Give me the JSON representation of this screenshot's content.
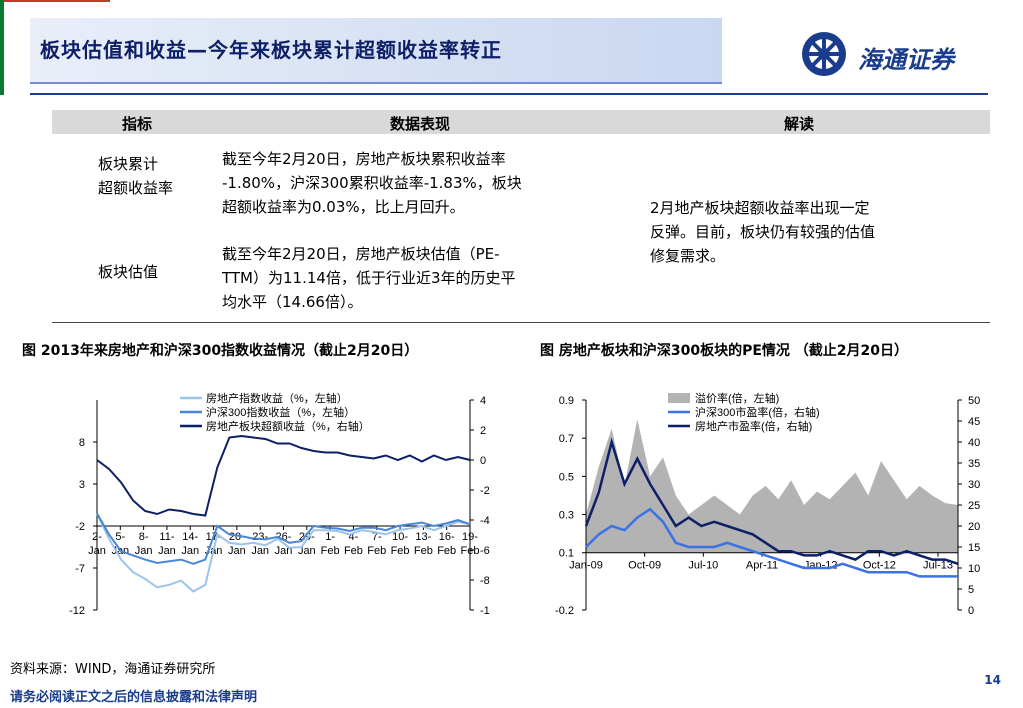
{
  "header": {
    "title": "板块估值和收益—今年来板块累计超额收益率转正",
    "logo_text": "海通证券"
  },
  "table": {
    "headers": [
      "指标",
      "数据表现",
      "解读"
    ],
    "rows": [
      {
        "indicator": "板块累计超额收益率",
        "indicator_lines": [
          "板块累计",
          "超额收益率"
        ],
        "data_lines": [
          "截至今年2月20日，房地产板块累积收益率",
          "-1.80%，沪深300累积收益率-1.83%，板块",
          "超额收益率为0.03%，比上月回升。"
        ]
      },
      {
        "indicator": "板块估值",
        "data_lines": [
          "截至今年2月20日，房地产板块估值（PE-",
          "TTM）为11.14倍，低于行业近3年的历史平",
          "均水平（14.66倍）。"
        ]
      }
    ],
    "interpretation_lines": [
      "2月地产板块超额收益率出现一定",
      "反弹。目前，板块仍有较强的估值",
      "修复需求。"
    ]
  },
  "captions": {
    "left": "图 2013年来房地产和沪深300指数收益情况（截止2月20日）",
    "right": "图 房地产板块和沪深300板块的PE情况 （截止2月20日）"
  },
  "chart_data": [
    {
      "type": "line",
      "x_tick_labels_top": [
        "2-",
        "5-",
        "8-",
        "11-",
        "14-",
        "17-",
        "20-",
        "23-",
        "26-",
        "29-",
        "1-",
        "4-",
        "7-",
        "10-",
        "13-",
        "16-",
        "19-"
      ],
      "x_tick_labels_bottom": [
        "Jan",
        "Jan",
        "Jan",
        "Jan",
        "Jan",
        "Jan",
        "Jan",
        "Jan",
        "Jan",
        "Jan",
        "Feb",
        "Feb",
        "Feb",
        "Feb",
        "Feb",
        "Feb",
        "Feb"
      ],
      "ylim_left": [
        -12,
        13
      ],
      "y_ticks_left": [
        "8",
        "3",
        "-2",
        "-7",
        "-12"
      ],
      "ylim_right": [
        -10,
        4
      ],
      "y_ticks_right": [
        "4",
        "2",
        "0",
        "-2",
        "-4",
        "-6",
        "-8",
        "-10"
      ],
      "series": [
        {
          "name": "房地产指数收益（%，左轴）",
          "axis": "left",
          "color": "#9cc3ea",
          "values": [
            -0.5,
            -3.5,
            -6.0,
            -7.5,
            -8.3,
            -9.3,
            -9.0,
            -8.5,
            -9.8,
            -9.0,
            -3.0,
            -4.0,
            -4.2,
            -4.0,
            -4.3,
            -3.5,
            -4.6,
            -4.5,
            -2.5,
            -2.5,
            -2.6,
            -3.0,
            -2.5,
            -2.7,
            -3.0,
            -2.5,
            -2.3,
            -2.0,
            -2.5,
            -2.0,
            -1.5,
            -1.8
          ]
        },
        {
          "name": "沪深300指数收益（%，左轴）",
          "axis": "left",
          "color": "#4a86d6",
          "values": [
            -0.5,
            -3.0,
            -5.0,
            -5.5,
            -6.0,
            -6.4,
            -6.2,
            -6.0,
            -6.5,
            -6.0,
            -2.0,
            -3.0,
            -3.2,
            -3.5,
            -3.6,
            -3.3,
            -4.0,
            -3.8,
            -2.0,
            -2.2,
            -2.3,
            -2.6,
            -2.2,
            -2.2,
            -2.5,
            -2.0,
            -1.8,
            -1.6,
            -2.0,
            -1.7,
            -1.3,
            -1.8
          ]
        },
        {
          "name": "房地产板块超额收益（%，右轴）",
          "axis": "right",
          "color": "#0d1f66",
          "values": [
            0.0,
            -0.6,
            -1.5,
            -2.7,
            -3.4,
            -3.6,
            -3.3,
            -3.4,
            -3.6,
            -3.7,
            -0.5,
            1.5,
            1.6,
            1.5,
            1.4,
            1.1,
            1.1,
            0.8,
            0.6,
            0.5,
            0.5,
            0.3,
            0.2,
            0.1,
            0.3,
            0.0,
            0.3,
            -0.1,
            0.3,
            0.0,
            0.2,
            0.0
          ]
        }
      ]
    },
    {
      "type": "area",
      "x_tick_labels": [
        "Jan-09",
        "Oct-09",
        "Jul-10",
        "Apr-11",
        "Jan-12",
        "Oct-12",
        "Jul-13"
      ],
      "ylim_left": [
        -0.2,
        0.9
      ],
      "y_ticks_left": [
        "0.9",
        "0.7",
        "0.5",
        "0.3",
        "0.1",
        "-0.2"
      ],
      "ylim_right": [
        0,
        50
      ],
      "y_ticks_right": [
        "50",
        "45",
        "40",
        "35",
        "30",
        "25",
        "20",
        "15",
        "10",
        "5",
        "0"
      ],
      "series": [
        {
          "name": "溢价率(倍，左轴)",
          "axis": "left",
          "color": "#b3b3b3",
          "values": [
            0.3,
            0.55,
            0.75,
            0.45,
            0.8,
            0.5,
            0.6,
            0.4,
            0.3,
            0.35,
            0.4,
            0.35,
            0.3,
            0.4,
            0.45,
            0.38,
            0.48,
            0.35,
            0.42,
            0.38,
            0.45,
            0.52,
            0.4,
            0.58,
            0.48,
            0.38,
            0.45,
            0.4,
            0.36,
            0.35
          ]
        },
        {
          "name": "沪深300市盈率(倍，右轴)",
          "axis": "right",
          "color": "#3b73e6",
          "values": [
            15,
            18,
            20,
            19,
            22,
            24,
            21,
            16,
            15,
            15,
            15,
            16,
            15,
            14,
            13,
            12,
            11,
            10,
            10,
            10,
            11,
            10,
            9,
            9,
            9,
            9,
            8,
            8,
            8,
            8
          ]
        },
        {
          "name": "房地产市盈率(倍，右轴)",
          "axis": "right",
          "color": "#0d1f66",
          "values": [
            20,
            28,
            40,
            30,
            36,
            30,
            25,
            20,
            22,
            20,
            21,
            20,
            19,
            18,
            16,
            14,
            14,
            13,
            13,
            14,
            13,
            12,
            14,
            14,
            13,
            14,
            13,
            12,
            12,
            11
          ]
        }
      ]
    }
  ],
  "footer": {
    "source": "资料来源：WIND，海通证券研究所",
    "disclaimer": "请务必阅读正文之后的信息披露和法律声明",
    "page": "14"
  }
}
